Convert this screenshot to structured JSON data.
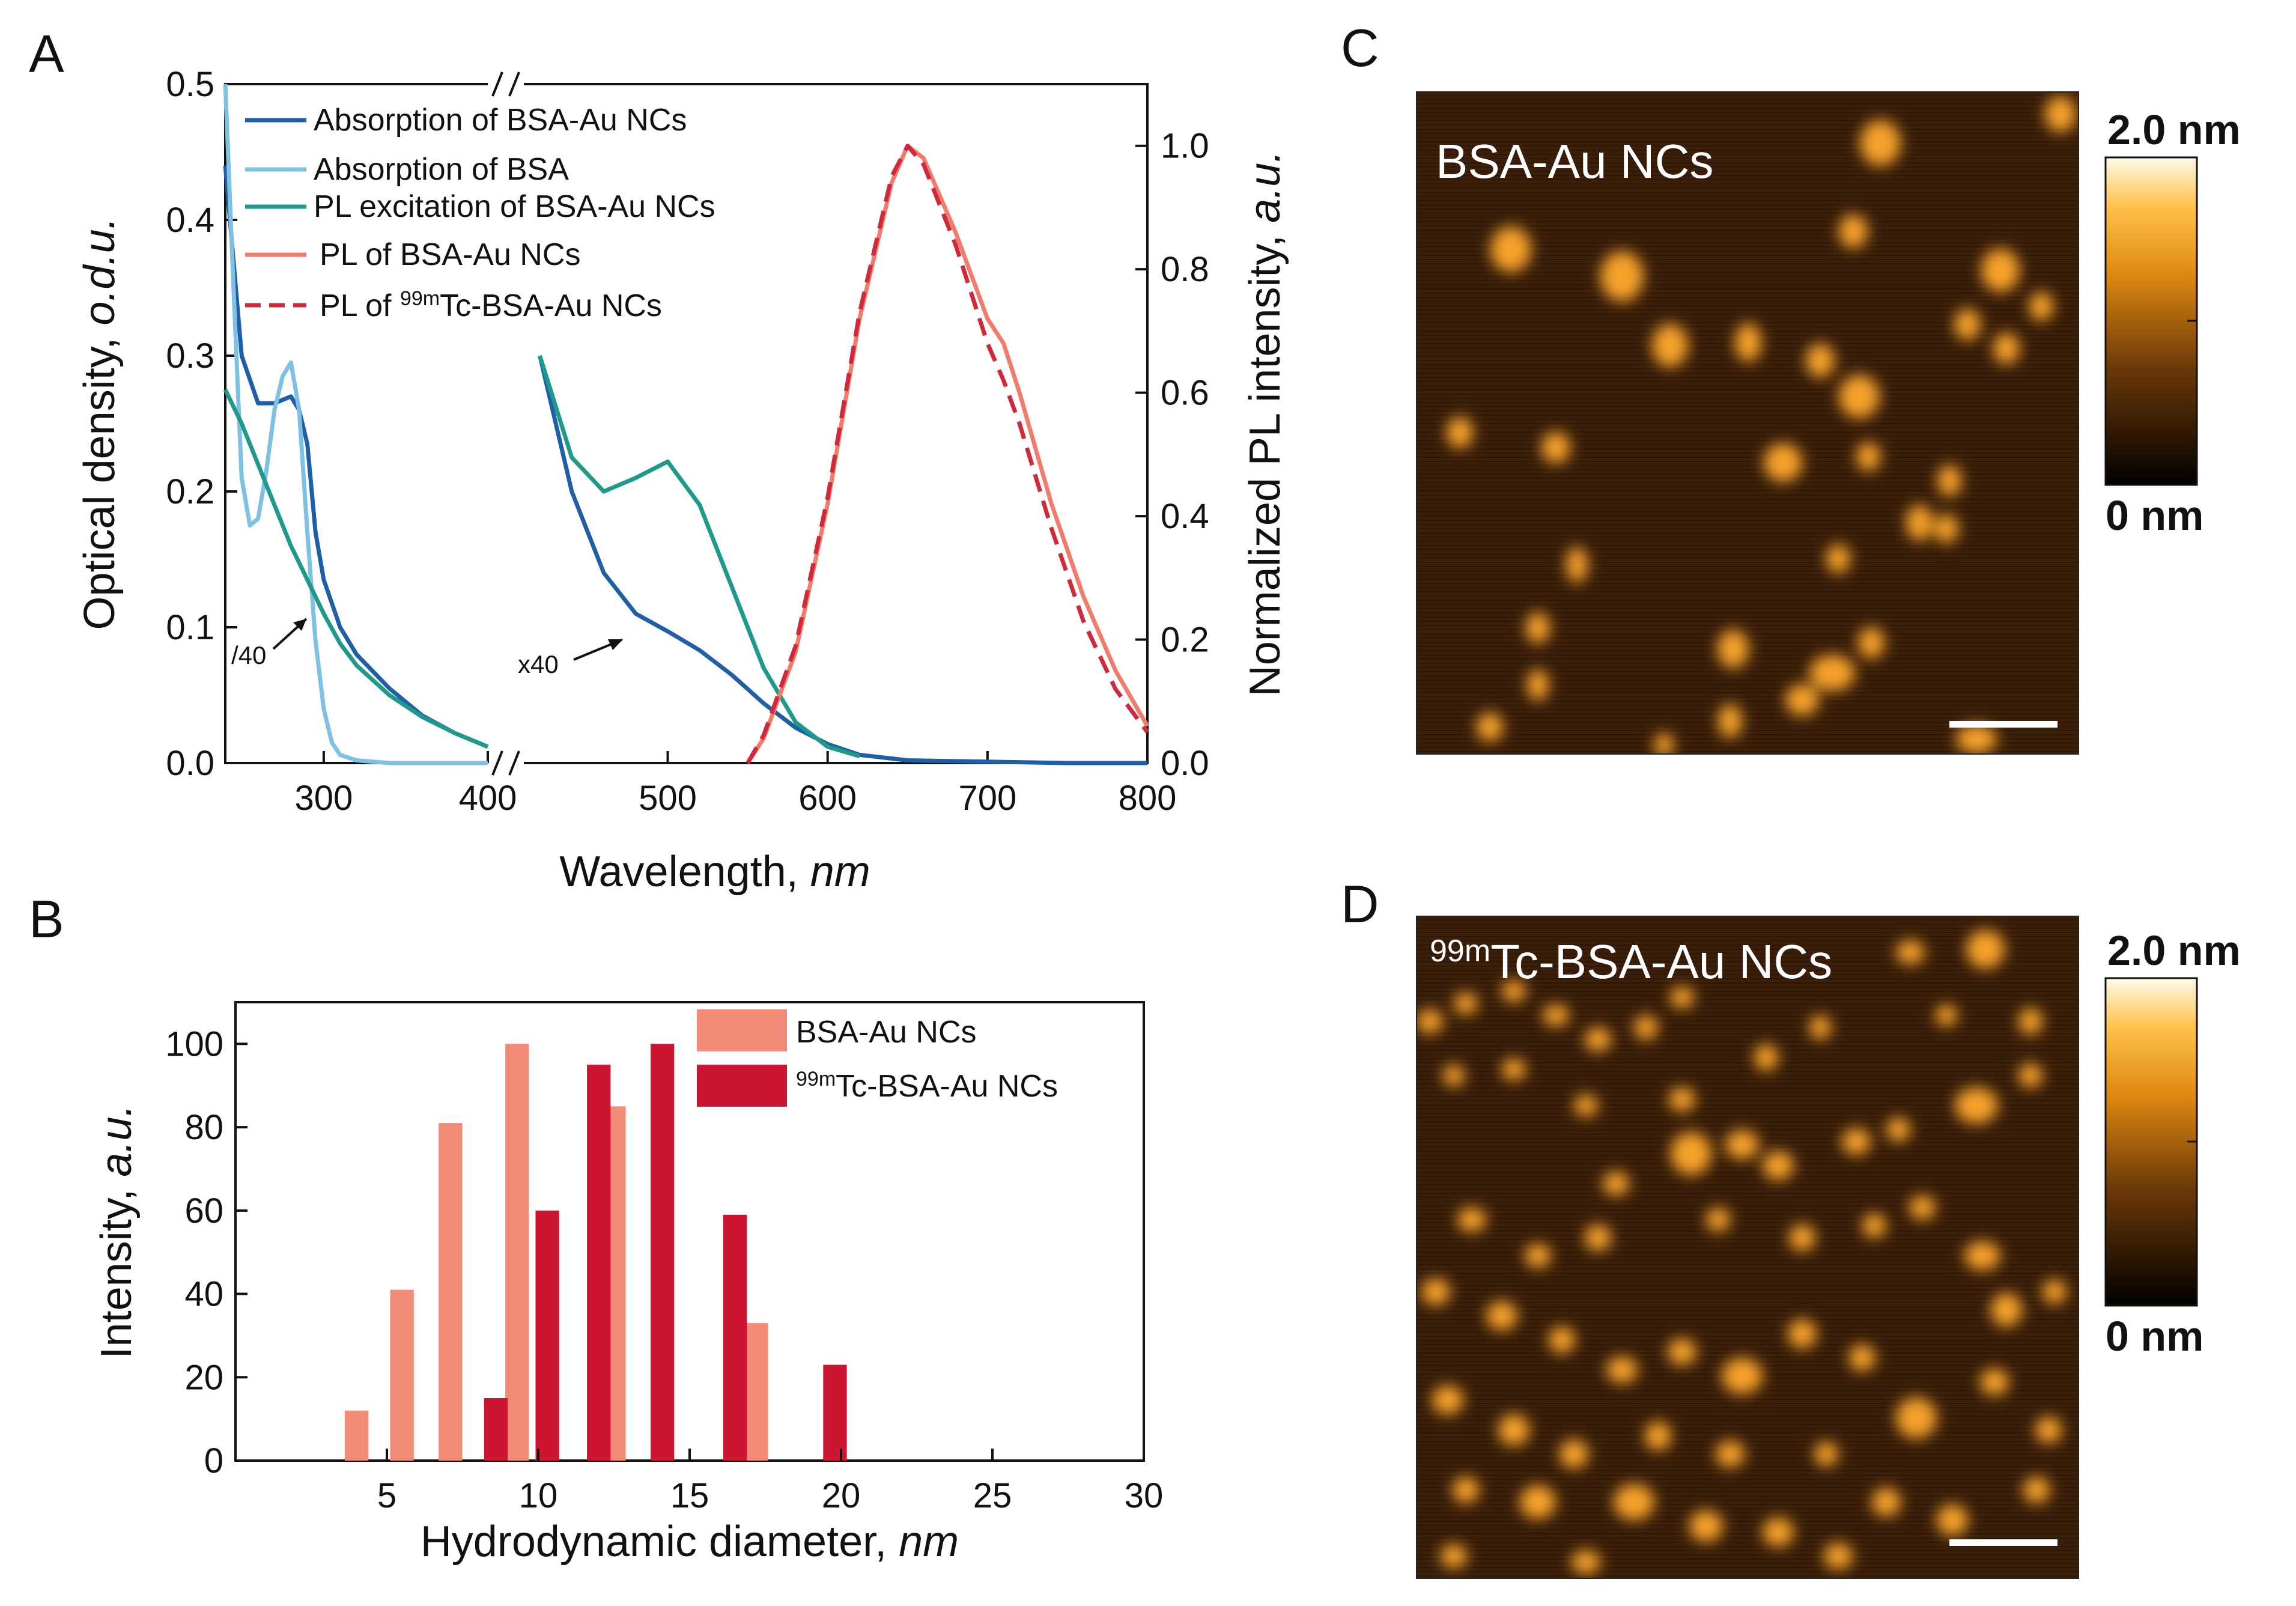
{
  "panels": {
    "A": "A",
    "B": "B",
    "C": "C",
    "D": "D"
  },
  "chart_data": [
    {
      "id": "A",
      "type": "line",
      "xlabel": "Wavelength, ",
      "xlabel_unit": "nm",
      "ylabel_left": "Optical density, ",
      "ylabel_left_unit": "o.d.u.",
      "ylabel_right": "Normalized PL intensity, ",
      "ylabel_right_unit": "a.u.",
      "x_broken_axis": [
        [
          240,
          400
        ],
        [
          410,
          800
        ]
      ],
      "ylim_left": [
        0,
        0.5
      ],
      "ylim_right": [
        0,
        1.1
      ],
      "xticks_left": [
        "300",
        "400"
      ],
      "xticks_right": [
        "500",
        "600",
        "700",
        "800"
      ],
      "yticks_left": [
        "0.0",
        "0.1",
        "0.2",
        "0.3",
        "0.4",
        "0.5"
      ],
      "yticks_right": [
        "0.0",
        "0.2",
        "0.4",
        "0.6",
        "0.8",
        "1.0"
      ],
      "annotations": [
        "/40",
        "x40"
      ],
      "series": [
        {
          "name": "Absorption of BSA-Au NCs",
          "color": "#1f5fa8",
          "axis": "left",
          "style": "solid",
          "x": [
            240,
            250,
            260,
            270,
            280,
            285,
            290,
            295,
            300,
            310,
            320,
            340,
            360,
            380,
            400,
            420,
            440,
            460,
            480,
            500,
            520,
            540,
            560,
            580,
            600,
            620,
            650,
            700,
            750,
            800
          ],
          "y": [
            0.44,
            0.3,
            0.265,
            0.265,
            0.27,
            0.26,
            0.235,
            0.17,
            0.135,
            0.1,
            0.08,
            0.055,
            0.035,
            0.022,
            0.012,
            0.3,
            0.2,
            0.14,
            0.11,
            0.097,
            0.083,
            0.065,
            0.044,
            0.026,
            0.014,
            0.006,
            0.002,
            0.001,
            0.0,
            0.0
          ]
        },
        {
          "name": "Absorption of BSA",
          "color": "#7fc1e3",
          "axis": "left",
          "style": "solid",
          "x": [
            240,
            245,
            250,
            255,
            260,
            265,
            270,
            275,
            280,
            285,
            290,
            295,
            300,
            305,
            310,
            320,
            340,
            360,
            380,
            400
          ],
          "y": [
            0.5,
            0.35,
            0.21,
            0.175,
            0.18,
            0.215,
            0.26,
            0.285,
            0.295,
            0.26,
            0.17,
            0.09,
            0.04,
            0.015,
            0.006,
            0.002,
            0.0,
            0.0,
            0.0,
            0.0
          ]
        },
        {
          "name": "PL excitation of BSA-Au NCs",
          "color": "#1f9a8a",
          "axis": "left",
          "style": "solid",
          "x": [
            240,
            250,
            260,
            270,
            280,
            290,
            300,
            310,
            320,
            340,
            360,
            380,
            400,
            420,
            440,
            460,
            480,
            500,
            520,
            540,
            560,
            580,
            600,
            620
          ],
          "y": [
            0.275,
            0.25,
            0.22,
            0.19,
            0.16,
            0.135,
            0.11,
            0.088,
            0.072,
            0.05,
            0.034,
            0.022,
            0.012,
            0.3,
            0.225,
            0.2,
            0.21,
            0.222,
            0.19,
            0.13,
            0.07,
            0.03,
            0.012,
            0.005
          ]
        },
        {
          "name": "PL of BSA-Au NCs",
          "color": "#f07c6c",
          "axis": "right",
          "style": "solid",
          "x": [
            550,
            560,
            580,
            600,
            620,
            640,
            650,
            660,
            680,
            700,
            710,
            720,
            740,
            760,
            780,
            800
          ],
          "y": [
            0.0,
            0.04,
            0.18,
            0.42,
            0.72,
            0.94,
            1.0,
            0.98,
            0.86,
            0.72,
            0.68,
            0.6,
            0.42,
            0.27,
            0.15,
            0.06
          ]
        },
        {
          "name": "PL of ",
          "sup": "99m",
          "name_suffix": "Tc-BSA-Au NCs",
          "color": "#cf2a3c",
          "axis": "right",
          "style": "dashed",
          "x": [
            550,
            560,
            580,
            600,
            620,
            640,
            650,
            660,
            680,
            700,
            710,
            720,
            740,
            760,
            780,
            800
          ],
          "y": [
            0.0,
            0.045,
            0.19,
            0.43,
            0.73,
            0.95,
            1.0,
            0.97,
            0.84,
            0.68,
            0.62,
            0.55,
            0.38,
            0.23,
            0.12,
            0.05
          ]
        }
      ]
    },
    {
      "id": "B",
      "type": "bar",
      "xlabel": "Hydrodynamic diameter, ",
      "xlabel_unit": "nm",
      "ylabel": "Intensity, ",
      "ylabel_unit": "a.u.",
      "xlim": [
        0,
        30
      ],
      "ylim": [
        0,
        110
      ],
      "xticks": [
        "5",
        "10",
        "15",
        "20",
        "25",
        "30"
      ],
      "yticks": [
        "0",
        "20",
        "40",
        "60",
        "80",
        "100"
      ],
      "series": [
        {
          "name": "BSA-Au NCs",
          "color": "#f48a78",
          "x": [
            4.0,
            5.5,
            7.1,
            9.3,
            12.5,
            17.2
          ],
          "values": [
            12,
            41,
            81,
            100,
            85,
            33
          ]
        },
        {
          "name": "",
          "sup": "99m",
          "name_suffix": "Tc-BSA-Au NCs",
          "color": "#cc1530",
          "x": [
            8.6,
            10.3,
            12.0,
            14.1,
            16.5,
            19.8
          ],
          "values": [
            15,
            60,
            95,
            100,
            59,
            23
          ]
        }
      ]
    }
  ],
  "afm": {
    "C": {
      "label": "BSA-Au NCs",
      "sup": "",
      "scale_top": "2.0 nm",
      "scale_bottom": "0 nm"
    },
    "D": {
      "label": "Tc-BSA-Au NCs",
      "sup": "99m",
      "scale_top": "2.0 nm",
      "scale_bottom": "0 nm"
    }
  },
  "colors": {
    "afm_bg": "#3a1e08",
    "afm_spot": "#f6a22a"
  }
}
